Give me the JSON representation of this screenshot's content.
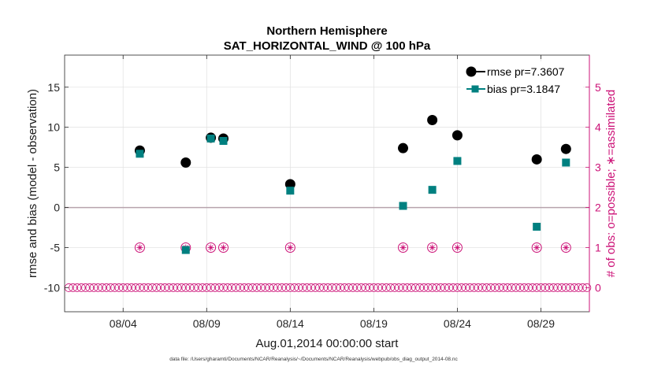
{
  "chart_data": {
    "type": "scatter",
    "title": "Northern Hemisphere",
    "subtitle": "SAT_HORIZONTAL_WIND @ 100 hPa",
    "xlabel": "Aug.01,2014 00:00:00 start",
    "ylabel": "rmse and bias (model - observation)",
    "y2label": "# of obs: o=possible; ∗=assimilated",
    "footnote": "data file: /Users/gharamti/Documents/NCAR/Reanalysis/~/Documents/NCAR/Reanalysis/webpub/obs_diag_output_2014-08.nc",
    "xlim": [
      0.5,
      31.9
    ],
    "ylim": [
      -13,
      19
    ],
    "y2lim": [
      -0.6,
      5.8
    ],
    "xticks": [
      4,
      9,
      14,
      19,
      24,
      29
    ],
    "xticklabels": [
      "08/04",
      "08/09",
      "08/14",
      "08/19",
      "08/24",
      "08/29"
    ],
    "yticks": [
      -10,
      -5,
      0,
      5,
      10,
      15
    ],
    "yticklabels": [
      "-10",
      "-5",
      "0",
      "5",
      "10",
      "15"
    ],
    "y2ticks": [
      0,
      1,
      2,
      3,
      4,
      5
    ],
    "y2ticklabels": [
      "0",
      "1",
      "2",
      "3",
      "4",
      "5"
    ],
    "grid": true,
    "zero_line": 0,
    "legend": [
      {
        "label": "rmse pr=7.3607",
        "color": "#000000",
        "marker": "circle"
      },
      {
        "label": "bias pr=3.1847",
        "color": "#008080",
        "marker": "square"
      }
    ],
    "legend_position": "top-right",
    "series": [
      {
        "name": "rmse",
        "color": "#000000",
        "marker": "circle",
        "x": [
          5,
          7.75,
          9.25,
          10,
          14,
          20.75,
          22.5,
          24,
          28.75,
          30.5
        ],
        "y": [
          7.1,
          5.6,
          8.7,
          8.6,
          2.9,
          7.4,
          10.9,
          9.0,
          6.0,
          7.3
        ]
      },
      {
        "name": "bias",
        "color": "#008080",
        "marker": "square",
        "x": [
          5,
          7.75,
          9.25,
          10,
          14,
          20.75,
          22.5,
          24,
          28.75,
          30.5
        ],
        "y": [
          6.7,
          -5.3,
          8.6,
          8.3,
          2.1,
          0.2,
          2.2,
          5.8,
          -2.4,
          5.6
        ]
      },
      {
        "name": "obs possible",
        "color": "#cc1177",
        "marker": "open-circle",
        "x_start": 0.75,
        "x_end": 31.75,
        "x_step": 0.25,
        "value": 0
      },
      {
        "name": "obs assimilated",
        "color": "#cc1177",
        "marker": "circled-asterisk",
        "x": [
          5,
          7.75,
          9.25,
          10,
          14,
          20.75,
          22.5,
          24,
          28.75,
          30.5
        ],
        "y": [
          1,
          1,
          1,
          1,
          1,
          1,
          1,
          1,
          1,
          1
        ]
      }
    ]
  }
}
